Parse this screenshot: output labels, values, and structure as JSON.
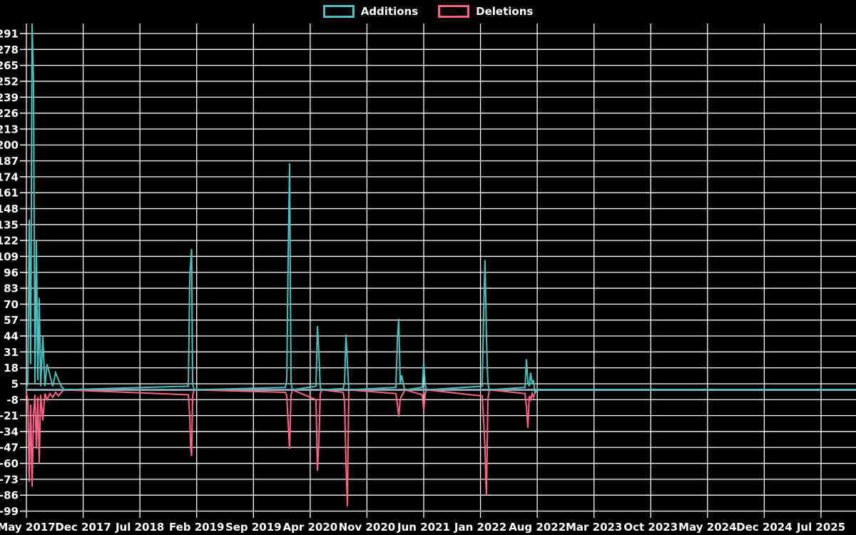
{
  "page": {
    "background": "#000000"
  },
  "legend": {
    "items": [
      {
        "label": "Additions",
        "color": "#4bc0c0"
      },
      {
        "label": "Deletions",
        "color": "#ff6384"
      }
    ]
  },
  "chart_data": {
    "type": "line",
    "title": "",
    "legend_position": "top",
    "grid": true,
    "x_axis": {
      "x_unit": "months since May 2017",
      "months_per_tick": 7,
      "tick_labels": [
        "May 2017",
        "Dec 2017",
        "Jul 2018",
        "Feb 2019",
        "Sep 2019",
        "Apr 2020",
        "Nov 2020",
        "Jun 2021",
        "Jan 2022",
        "Aug 2022",
        "Mar 2023",
        "Oct 2023",
        "May 2024",
        "Dec 2024",
        "Jul 2025"
      ],
      "x_range_months": [
        0,
        102.3
      ]
    },
    "y_axis": {
      "min": -99,
      "max": 291,
      "step": 13
    },
    "colors": {
      "background": "#000000",
      "grid": "#fdfdfd",
      "zero_line": "#84a5b2",
      "text": "#ffffff"
    },
    "series": [
      {
        "name": "Additions",
        "color": "#4bc0c0",
        "points": [
          [
            0,
            2
          ],
          [
            0.18,
            5
          ],
          [
            0.35,
            139
          ],
          [
            0.53,
            21
          ],
          [
            0.7,
            299
          ],
          [
            0.88,
            252
          ],
          [
            1.06,
            5
          ],
          [
            1.23,
            122
          ],
          [
            1.41,
            8
          ],
          [
            1.58,
            75
          ],
          [
            1.76,
            3
          ],
          [
            2.02,
            44
          ],
          [
            2.29,
            3
          ],
          [
            2.55,
            21
          ],
          [
            2.9,
            12
          ],
          [
            3.25,
            3
          ],
          [
            3.61,
            14
          ],
          [
            3.96,
            8
          ],
          [
            4.31,
            3
          ],
          [
            4.66,
            0
          ],
          [
            19.97,
            3
          ],
          [
            20.15,
            93
          ],
          [
            20.37,
            115
          ],
          [
            20.5,
            5
          ],
          [
            20.68,
            0
          ],
          [
            31.94,
            2
          ],
          [
            32.11,
            8
          ],
          [
            32.29,
            113
          ],
          [
            32.46,
            185
          ],
          [
            32.64,
            5
          ],
          [
            32.82,
            0
          ],
          [
            35.72,
            3
          ],
          [
            35.89,
            52
          ],
          [
            36.07,
            31
          ],
          [
            36.24,
            2
          ],
          [
            36.42,
            0
          ],
          [
            39.06,
            1
          ],
          [
            39.24,
            6
          ],
          [
            39.41,
            45
          ],
          [
            39.59,
            23
          ],
          [
            39.76,
            0
          ],
          [
            45.57,
            2
          ],
          [
            45.75,
            41
          ],
          [
            45.92,
            58
          ],
          [
            46.1,
            5
          ],
          [
            46.27,
            12
          ],
          [
            46.54,
            3
          ],
          [
            46.71,
            0
          ],
          [
            48.82,
            2
          ],
          [
            49,
            23
          ],
          [
            49.18,
            4
          ],
          [
            49.35,
            0
          ],
          [
            56.21,
            3
          ],
          [
            56.39,
            63
          ],
          [
            56.56,
            106
          ],
          [
            56.74,
            42
          ],
          [
            56.91,
            5
          ],
          [
            57.09,
            0
          ],
          [
            61.49,
            2
          ],
          [
            61.67,
            25
          ],
          [
            61.84,
            6
          ],
          [
            62.02,
            3
          ],
          [
            62.19,
            14
          ],
          [
            62.37,
            5
          ],
          [
            62.54,
            8
          ],
          [
            62.72,
            -3
          ],
          [
            62.89,
            0
          ],
          [
            102.3,
            0
          ]
        ]
      },
      {
        "name": "Deletions",
        "color": "#ff6384",
        "points": [
          [
            0,
            -2
          ],
          [
            0.18,
            -8
          ],
          [
            0.35,
            -75
          ],
          [
            0.53,
            -12
          ],
          [
            0.7,
            -79
          ],
          [
            0.88,
            -20
          ],
          [
            1.06,
            -4
          ],
          [
            1.23,
            -48
          ],
          [
            1.41,
            -6
          ],
          [
            1.58,
            -60
          ],
          [
            1.76,
            -4
          ],
          [
            2.02,
            -25
          ],
          [
            2.29,
            -3
          ],
          [
            2.55,
            -8
          ],
          [
            2.9,
            -3
          ],
          [
            3.25,
            -6
          ],
          [
            3.61,
            -2
          ],
          [
            3.96,
            -5
          ],
          [
            4.31,
            -2
          ],
          [
            4.66,
            0
          ],
          [
            19.97,
            -4
          ],
          [
            20.15,
            -23
          ],
          [
            20.26,
            -47
          ],
          [
            20.37,
            -54
          ],
          [
            20.5,
            -5
          ],
          [
            20.68,
            0
          ],
          [
            31.94,
            -2
          ],
          [
            32.11,
            -5
          ],
          [
            32.29,
            -28
          ],
          [
            32.46,
            -48
          ],
          [
            32.64,
            -4
          ],
          [
            32.82,
            0
          ],
          [
            35.72,
            -8
          ],
          [
            35.89,
            -66
          ],
          [
            36.07,
            -42
          ],
          [
            36.24,
            -3
          ],
          [
            36.42,
            0
          ],
          [
            39.06,
            -2
          ],
          [
            39.24,
            -10
          ],
          [
            39.41,
            -60
          ],
          [
            39.59,
            -95
          ],
          [
            39.76,
            0
          ],
          [
            45.57,
            -3
          ],
          [
            45.75,
            -12
          ],
          [
            45.92,
            -22
          ],
          [
            46.1,
            -8
          ],
          [
            46.27,
            -5
          ],
          [
            46.54,
            -2
          ],
          [
            46.71,
            0
          ],
          [
            48.82,
            -4
          ],
          [
            49,
            -17
          ],
          [
            49.18,
            -3
          ],
          [
            49.35,
            0
          ],
          [
            56.21,
            -5
          ],
          [
            56.39,
            -25
          ],
          [
            56.56,
            -47
          ],
          [
            56.65,
            -73
          ],
          [
            56.74,
            -86
          ],
          [
            56.91,
            -8
          ],
          [
            57.09,
            0
          ],
          [
            61.49,
            -3
          ],
          [
            61.67,
            -14
          ],
          [
            61.84,
            -31
          ],
          [
            62.02,
            -5
          ],
          [
            62.19,
            -8
          ],
          [
            62.37,
            -3
          ],
          [
            62.54,
            -6
          ],
          [
            62.72,
            -2
          ],
          [
            62.89,
            0
          ],
          [
            102.3,
            0
          ]
        ]
      }
    ]
  }
}
